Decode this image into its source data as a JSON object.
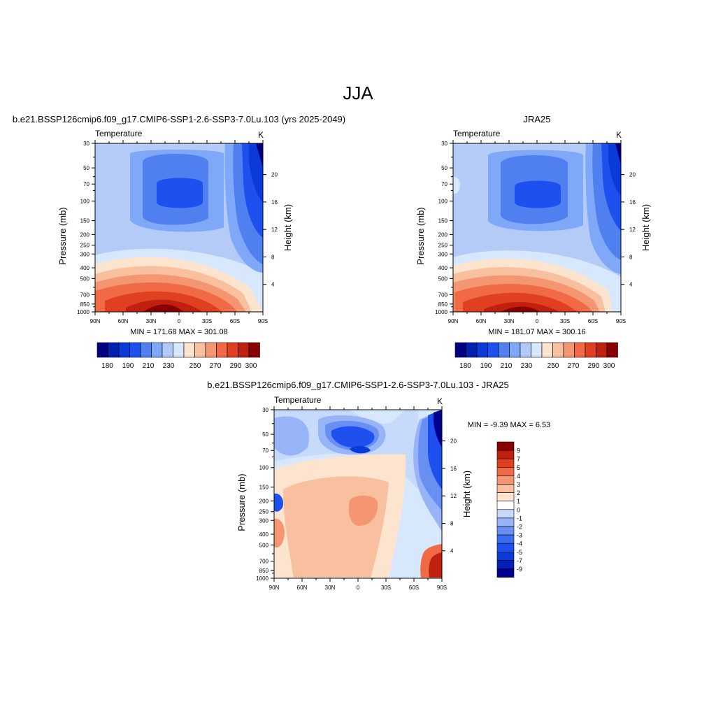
{
  "figure": {
    "title": "JJA"
  },
  "pressure_ticks": [
    "30",
    "50",
    "70",
    "100",
    "150",
    "200",
    "250",
    "300",
    "400",
    "500",
    "700",
    "850",
    "1000"
  ],
  "pressure_values": [
    30,
    50,
    70,
    100,
    150,
    200,
    250,
    300,
    400,
    500,
    700,
    850,
    1000
  ],
  "height_ticks": [
    "20",
    "16",
    "12",
    "8",
    "4"
  ],
  "height_values": [
    20,
    16,
    12,
    8,
    4
  ],
  "lat_ticks": [
    "90N",
    "60N",
    "30N",
    "0",
    "30S",
    "60S",
    "90S"
  ],
  "lat_values": [
    90,
    60,
    30,
    0,
    -30,
    -60,
    -90
  ],
  "panels": [
    {
      "title": "b.e21.BSSP126cmip6.f09_g17.CMIP6-SSP1-2.6-SSP3-7.0Lu.103 (yrs 2025-2049)",
      "left_label": "Temperature",
      "right_label": "K",
      "stats": "MIN = 171.68  MAX = 301.08"
    },
    {
      "title": "JRA25",
      "left_label": "Temperature",
      "right_label": "K",
      "stats": "MIN = 181.07  MAX = 300.16"
    },
    {
      "title": "b.e21.BSSP126cmip6.f09_g17.CMIP6-SSP1-2.6-SSP3-7.0Lu.103 - JRA25",
      "left_label": "Temperature",
      "right_label": "K",
      "stats": "MIN =  -9.39  MAX =   6.53"
    }
  ],
  "axis": {
    "ylabel": "Pressure (mb)",
    "y2label": "Height (km)"
  },
  "temperature_colorbar": {
    "colors": [
      "#00007f",
      "#0020b0",
      "#0a3ad8",
      "#1e50f0",
      "#5080f0",
      "#80a8f8",
      "#b0c8f8",
      "#d8e8fc",
      "#fde4cf",
      "#f9c0a0",
      "#f59672",
      "#ef6a45",
      "#e04020",
      "#c02010",
      "#8a0000"
    ],
    "labels": [
      "180",
      "190",
      "210",
      "230",
      "250",
      "270",
      "290",
      "300"
    ]
  },
  "difference_colorbar": {
    "colors": [
      "#000090",
      "#0020b8",
      "#0a3ad8",
      "#1e50f0",
      "#3c6cf4",
      "#6890f4",
      "#98b4f8",
      "#c8dafc",
      "#ffffff",
      "#fde4cf",
      "#f9c0a0",
      "#f59672",
      "#ef6a45",
      "#e04020",
      "#c02010",
      "#8a0000"
    ],
    "labels": [
      "9",
      "7",
      "5",
      "4",
      "3",
      "2",
      "1",
      "0",
      "-1",
      "-2",
      "-3",
      "-4",
      "-5",
      "-7",
      "-9"
    ]
  },
  "chart_data": [
    {
      "type": "heatmap",
      "title": "b.e21.BSSP126cmip6.f09_g17.CMIP6-SSP1-2.6-SSP3-7.0Lu.103 (yrs 2025-2049)",
      "xlabel": "",
      "ylabel": "Pressure (mb)",
      "y2label": "Height (km)",
      "variable": "Temperature",
      "units": "K",
      "x": [
        90,
        60,
        30,
        0,
        -30,
        -60,
        -90
      ],
      "y": [
        30,
        50,
        70,
        100,
        150,
        200,
        250,
        300,
        400,
        500,
        700,
        850,
        1000
      ],
      "min": 171.68,
      "max": 301.08,
      "colorbar_levels": [
        180,
        190,
        210,
        230,
        250,
        270,
        290,
        300
      ]
    },
    {
      "type": "heatmap",
      "title": "JRA25",
      "xlabel": "",
      "ylabel": "Pressure (mb)",
      "y2label": "Height (km)",
      "variable": "Temperature",
      "units": "K",
      "x": [
        90,
        60,
        30,
        0,
        -30,
        -60,
        -90
      ],
      "y": [
        30,
        50,
        70,
        100,
        150,
        200,
        250,
        300,
        400,
        500,
        700,
        850,
        1000
      ],
      "min": 181.07,
      "max": 300.16,
      "colorbar_levels": [
        180,
        190,
        210,
        230,
        250,
        270,
        290,
        300
      ]
    },
    {
      "type": "heatmap",
      "title": "b.e21.BSSP126cmip6.f09_g17.CMIP6-SSP1-2.6-SSP3-7.0Lu.103 - JRA25",
      "xlabel": "",
      "ylabel": "Pressure (mb)",
      "y2label": "Height (km)",
      "variable": "Temperature",
      "units": "K",
      "x": [
        90,
        60,
        30,
        0,
        -30,
        -60,
        -90
      ],
      "y": [
        30,
        50,
        70,
        100,
        150,
        200,
        250,
        300,
        400,
        500,
        700,
        850,
        1000
      ],
      "min": -9.39,
      "max": 6.53,
      "colorbar_levels": [
        9,
        7,
        5,
        4,
        3,
        2,
        1,
        0,
        -1,
        -2,
        -3,
        -4,
        -5,
        -7,
        -9
      ]
    }
  ]
}
